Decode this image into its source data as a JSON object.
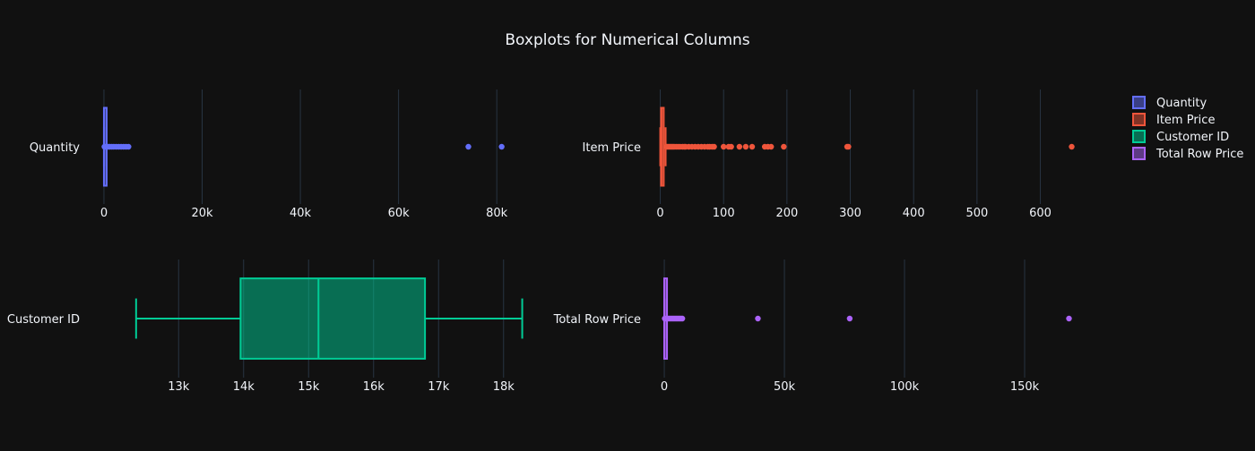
{
  "title": "Boxplots for Numerical Columns",
  "colors": {
    "background": "#111111",
    "grid": "#283442",
    "text": "#f2f5fa",
    "quantity": "#636efa",
    "item_price": "#ef553b",
    "customer_id": "#00cc96",
    "total_row_price": "#ab63fa"
  },
  "legend": {
    "placement": "top-right",
    "items": [
      {
        "label": "Quantity",
        "color": "#636efa"
      },
      {
        "label": "Item Price",
        "color": "#ef553b"
      },
      {
        "label": "Customer ID",
        "color": "#00cc96"
      },
      {
        "label": "Total Row Price",
        "color": "#ab63fa"
      }
    ]
  },
  "chart_data": [
    {
      "type": "box",
      "category": "Quantity",
      "color": "#636efa",
      "xlim": [
        -2000,
        88000
      ],
      "ticks": [
        0,
        20000,
        40000,
        60000,
        80000
      ],
      "tick_labels": [
        "0",
        "20k",
        "40k",
        "60k",
        "80k"
      ],
      "grid": true,
      "whisker_low": 1,
      "q1": 2,
      "median": 6,
      "q3": 12,
      "whisker_high": 27,
      "outliers": [
        100,
        300,
        600,
        900,
        1200,
        1600,
        2000,
        2500,
        3000,
        3500,
        4000,
        4500,
        5000,
        74215,
        80995
      ]
    },
    {
      "type": "box",
      "category": "Item Price",
      "color": "#ef553b",
      "xlim": [
        -5,
        670
      ],
      "ticks": [
        0,
        100,
        200,
        300,
        400,
        500,
        600
      ],
      "tick_labels": [
        "0",
        "100",
        "200",
        "300",
        "400",
        "500",
        "600"
      ],
      "grid": true,
      "whisker_low": 0,
      "q1": 1.25,
      "median": 2.08,
      "q3": 4.13,
      "whisker_high": 8.5,
      "outliers": [
        10,
        12,
        14,
        16,
        18,
        20,
        22,
        25,
        28,
        31,
        35,
        38,
        40,
        45,
        50,
        55,
        60,
        65,
        70,
        75,
        78,
        82,
        85,
        100,
        108,
        112,
        125,
        135,
        145,
        165,
        170,
        175,
        195,
        295,
        297,
        649.5
      ]
    },
    {
      "type": "box",
      "category": "Customer ID",
      "color": "#00cc96",
      "xlim": [
        11700,
        18500
      ],
      "ticks": [
        13000,
        14000,
        15000,
        16000,
        17000,
        18000
      ],
      "tick_labels": [
        "13k",
        "14k",
        "15k",
        "16k",
        "17k",
        "18k"
      ],
      "grid": true,
      "whisker_low": 12346,
      "q1": 13953,
      "median": 15152,
      "q3": 16791,
      "whisker_high": 18287,
      "outliers": []
    },
    {
      "type": "box",
      "category": "Total Row Price",
      "color": "#ab63fa",
      "xlim": [
        -3000,
        175000
      ],
      "ticks": [
        0,
        50000,
        100000,
        150000
      ],
      "tick_labels": [
        "0",
        "50k",
        "100k",
        "150k"
      ],
      "grid": true,
      "whisker_low": 0,
      "q1": 4.68,
      "median": 11.8,
      "q3": 19.8,
      "whisker_high": 42,
      "outliers": [
        200,
        500,
        1000,
        1500,
        2000,
        2500,
        3000,
        3500,
        4000,
        4500,
        5000,
        5500,
        6000,
        6500,
        7000,
        7500,
        38970,
        77183,
        168469
      ]
    }
  ]
}
